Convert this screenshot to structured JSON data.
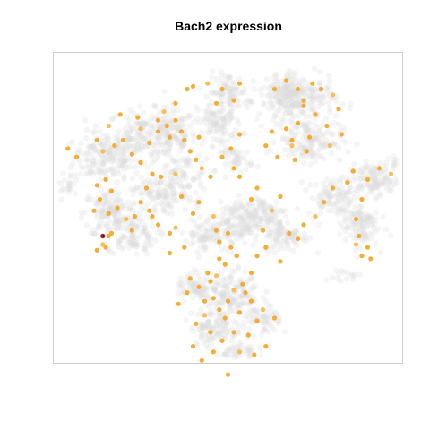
{
  "chart_data": {
    "type": "scatter",
    "title": "Bach2 expression",
    "xlabel": "",
    "ylabel": "",
    "axes_visible": false,
    "grid": false,
    "legend": "none",
    "x_range": [
      -60,
      60
    ],
    "y_range": [
      -55,
      55
    ],
    "colors": {
      "background_cells": "#dadada",
      "low": "#fff2d9",
      "mid": "#f5a623",
      "high": "#8b1a1a",
      "frame": "#cccccc"
    },
    "expressing_cells": [
      [
        -52,
        18
      ],
      [
        -55,
        21
      ],
      [
        -45,
        24
      ],
      [
        -43,
        20
      ],
      [
        -39,
        22
      ],
      [
        -36,
        24
      ],
      [
        -33,
        19
      ],
      [
        -30,
        16
      ],
      [
        -27,
        23
      ],
      [
        -24,
        27
      ],
      [
        -22,
        34
      ],
      [
        -21,
        29
      ],
      [
        -20,
        25
      ],
      [
        -16,
        27
      ],
      [
        -15,
        24
      ],
      [
        -13,
        20
      ],
      [
        -11,
        17
      ],
      [
        -9,
        14
      ],
      [
        -42,
        10
      ],
      [
        -40,
        6
      ],
      [
        -44,
        3
      ],
      [
        -46,
        -1
      ],
      [
        -41,
        -2
      ],
      [
        -38,
        0
      ],
      [
        -35,
        -4
      ],
      [
        -32,
        -3
      ],
      [
        -30,
        2
      ],
      [
        -28,
        7
      ],
      [
        -26,
        12
      ],
      [
        -33,
        -8
      ],
      [
        -41,
        -10
      ],
      [
        -43,
        -13
      ],
      [
        -45,
        -15
      ],
      [
        -42,
        -14
      ],
      [
        -40,
        -9
      ],
      [
        -27,
        -1
      ],
      [
        -24,
        -6
      ],
      [
        -20,
        -9
      ],
      [
        -18,
        -7
      ],
      [
        -12,
        -2
      ],
      [
        -10,
        2
      ],
      [
        -16,
        4
      ],
      [
        -23,
        11
      ],
      [
        -26,
        -3
      ],
      [
        -45,
        8
      ],
      [
        -30,
        28
      ],
      [
        -18,
        37
      ],
      [
        -14,
        42
      ],
      [
        -12,
        43
      ],
      [
        -24,
        31
      ],
      [
        -31,
        32
      ],
      [
        -37,
        33
      ],
      [
        -41,
        29
      ],
      [
        -18,
        31
      ],
      [
        -10,
        25
      ],
      [
        -4,
        37
      ],
      [
        -2,
        42
      ],
      [
        2,
        38
      ],
      [
        4,
        44
      ],
      [
        -7,
        44
      ],
      [
        16,
        42
      ],
      [
        20,
        45
      ],
      [
        24,
        42
      ],
      [
        26,
        38
      ],
      [
        29,
        44
      ],
      [
        32,
        42
      ],
      [
        36,
        40
      ],
      [
        38,
        35
      ],
      [
        34,
        29
      ],
      [
        30,
        33
      ],
      [
        26,
        36
      ],
      [
        24,
        30
      ],
      [
        28,
        25
      ],
      [
        35,
        22
      ],
      [
        39,
        26
      ],
      [
        20,
        28
      ],
      [
        22,
        24
      ],
      [
        15,
        27
      ],
      [
        13,
        22
      ],
      [
        17,
        18
      ],
      [
        22,
        22
      ],
      [
        27,
        20
      ],
      [
        23,
        17
      ],
      [
        -2,
        18
      ],
      [
        1,
        21
      ],
      [
        2,
        14
      ],
      [
        4,
        11
      ],
      [
        -5,
        -3
      ],
      [
        -4,
        -8
      ],
      [
        -3,
        -12
      ],
      [
        0,
        -9
      ],
      [
        1,
        -14
      ],
      [
        3,
        -17
      ],
      [
        -1,
        -20
      ],
      [
        -4,
        -24
      ],
      [
        5,
        -27
      ],
      [
        8,
        -23
      ],
      [
        10,
        -17
      ],
      [
        13,
        -14
      ],
      [
        18,
        -19
      ],
      [
        12,
        -8
      ],
      [
        15,
        -1
      ],
      [
        18,
        4
      ],
      [
        10,
        7
      ],
      [
        8,
        3
      ],
      [
        21,
        -9
      ],
      [
        24,
        -11
      ],
      [
        26,
        -6
      ],
      [
        30,
        -3
      ],
      [
        33,
        2
      ],
      [
        36,
        7
      ],
      [
        41,
        9
      ],
      [
        43,
        13
      ],
      [
        48,
        10
      ],
      [
        52,
        14
      ],
      [
        56,
        12
      ],
      [
        46,
        3
      ],
      [
        44,
        -4
      ],
      [
        45,
        -10
      ],
      [
        48,
        -14
      ],
      [
        49,
        -18
      ],
      [
        46,
        -17
      ],
      [
        44,
        -13
      ],
      [
        -14,
        -30
      ],
      [
        -10,
        -28
      ],
      [
        -8,
        -33
      ],
      [
        -5,
        -32
      ],
      [
        -3,
        -36
      ],
      [
        0,
        -33
      ],
      [
        -8,
        -38
      ],
      [
        -11,
        -41
      ],
      [
        -6,
        -44
      ],
      [
        -2,
        -47
      ],
      [
        2,
        -44
      ],
      [
        7,
        -45
      ],
      [
        10,
        -40
      ],
      [
        12,
        -36
      ],
      [
        8,
        -33
      ],
      [
        4,
        -37
      ],
      [
        -12,
        -49
      ],
      [
        -9,
        -54
      ],
      [
        -5,
        -51
      ],
      [
        0,
        -59
      ],
      [
        4,
        -51
      ],
      [
        9,
        -52
      ],
      [
        13,
        -49
      ],
      [
        16,
        -39
      ],
      [
        6,
        -30
      ],
      [
        -1,
        -39
      ],
      [
        -6,
        -26
      ],
      [
        2,
        -29
      ],
      [
        -17,
        -34
      ],
      [
        -13,
        -25
      ],
      [
        -7,
        -23
      ],
      [
        -3,
        -18
      ],
      [
        -20,
        -16
      ],
      [
        -15,
        -14
      ],
      [
        -18,
        12
      ],
      [
        -6,
        11
      ],
      [
        4,
        26
      ]
    ],
    "max_expression_cell": [
      -43,
      -10
    ]
  }
}
